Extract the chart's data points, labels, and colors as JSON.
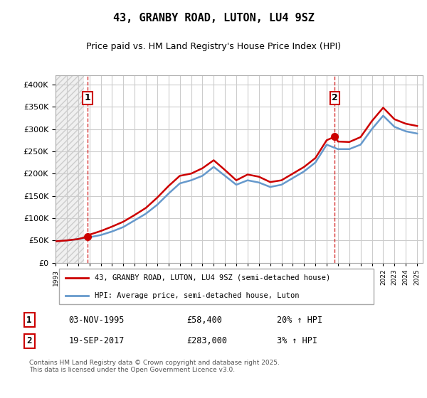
{
  "title": "43, GRANBY ROAD, LUTON, LU4 9SZ",
  "subtitle": "Price paid vs. HM Land Registry's House Price Index (HPI)",
  "ylabel_values": [
    "£0",
    "£50K",
    "£100K",
    "£150K",
    "£200K",
    "£250K",
    "£300K",
    "£350K",
    "£400K"
  ],
  "ylim": [
    0,
    420000
  ],
  "yticks": [
    0,
    50000,
    100000,
    150000,
    200000,
    250000,
    300000,
    350000,
    400000
  ],
  "purchase1": {
    "date_idx": 2.0,
    "value": 58400,
    "label": "1",
    "x_year": 1995.83
  },
  "purchase2": {
    "date_idx": 24.0,
    "value": 283000,
    "label": "2",
    "x_year": 2017.72
  },
  "legend_line1": "43, GRANBY ROAD, LUTON, LU4 9SZ (semi-detached house)",
  "legend_line2": "HPI: Average price, semi-detached house, Luton",
  "note1_label": "1",
  "note1_date": "03-NOV-1995",
  "note1_price": "£58,400",
  "note1_hpi": "20% ↑ HPI",
  "note2_label": "2",
  "note2_date": "19-SEP-2017",
  "note2_price": "£283,000",
  "note2_hpi": "3% ↑ HPI",
  "footer": "Contains HM Land Registry data © Crown copyright and database right 2025.\nThis data is licensed under the Open Government Licence v3.0.",
  "line_color_red": "#cc0000",
  "line_color_blue": "#6699cc",
  "vline_color": "#cc0000",
  "bg_hatch_color": "#dddddd",
  "grid_color": "#cccccc",
  "hpi_years": [
    1993,
    1994,
    1995,
    1996,
    1997,
    1998,
    1999,
    2000,
    2001,
    2002,
    2003,
    2004,
    2005,
    2006,
    2007,
    2008,
    2009,
    2010,
    2011,
    2012,
    2013,
    2014,
    2015,
    2016,
    2017,
    2018,
    2019,
    2020,
    2021,
    2022,
    2023,
    2024,
    2025
  ],
  "hpi_values": [
    48000,
    50000,
    53000,
    57000,
    62000,
    70000,
    80000,
    95000,
    110000,
    130000,
    155000,
    178000,
    185000,
    195000,
    215000,
    195000,
    175000,
    185000,
    180000,
    170000,
    175000,
    190000,
    205000,
    225000,
    265000,
    255000,
    255000,
    265000,
    300000,
    330000,
    305000,
    295000,
    290000
  ],
  "price_years": [
    1995.83,
    2017.72
  ],
  "price_values": [
    58400,
    283000
  ],
  "red_line_years": [
    1993,
    1994,
    1995,
    1995.83,
    1996,
    1997,
    1998,
    1999,
    2000,
    2001,
    2002,
    2003,
    2004,
    2005,
    2006,
    2007,
    2008,
    2009,
    2010,
    2011,
    2012,
    2013,
    2014,
    2015,
    2016,
    2017,
    2017.72,
    2018,
    2019,
    2020,
    2021,
    2022,
    2023,
    2024,
    2025
  ],
  "red_line_values": [
    48000,
    50000,
    53000,
    58400,
    62800,
    71000,
    81000,
    92000,
    107000,
    123000,
    146000,
    172000,
    195000,
    200000,
    212000,
    230000,
    208000,
    185000,
    198000,
    193000,
    181000,
    185000,
    200000,
    215000,
    235000,
    275000,
    283000,
    272000,
    271000,
    282000,
    318000,
    348000,
    322000,
    312000,
    307000
  ],
  "xlim_min": 1993,
  "xlim_max": 2025.5
}
